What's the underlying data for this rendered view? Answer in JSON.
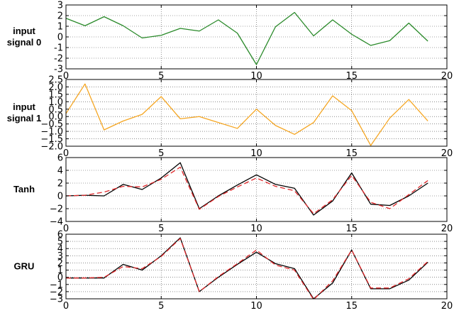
{
  "chart_data": [
    {
      "type": "line",
      "title": "",
      "row_label": [
        "input",
        "signal 0"
      ],
      "xlabel": "",
      "ylabel": "",
      "xlim": [
        0,
        20
      ],
      "ylim": [
        -3,
        3
      ],
      "xticks": [
        0,
        5,
        10,
        15,
        20
      ],
      "yticks": [
        -3,
        -2,
        -1,
        0,
        1,
        2,
        3
      ],
      "grid": true,
      "x": [
        0,
        1,
        2,
        3,
        4,
        5,
        6,
        7,
        8,
        9,
        10,
        11,
        12,
        13,
        14,
        15,
        16,
        17,
        18,
        19
      ],
      "series": [
        {
          "color": "#2a8a2a",
          "dash": "solid",
          "values": [
            1.75,
            1.05,
            1.9,
            1.05,
            -0.1,
            0.15,
            0.8,
            0.55,
            1.6,
            0.35,
            -2.6,
            0.95,
            2.3,
            0.1,
            1.6,
            0.25,
            -0.8,
            -0.35,
            1.3,
            -0.4
          ]
        }
      ]
    },
    {
      "type": "line",
      "title": "",
      "row_label": [
        "input",
        "signal 1"
      ],
      "xlabel": "",
      "ylabel": "",
      "xlim": [
        0,
        20
      ],
      "ylim": [
        -2.0,
        2.5
      ],
      "xticks": [
        0,
        5,
        10,
        15,
        20
      ],
      "yticks": [
        -2.0,
        -1.5,
        -1.0,
        -0.5,
        0.0,
        0.5,
        1.0,
        1.5,
        2.0,
        2.5
      ],
      "ytick_labels": [
        "−2.0",
        "−1.5",
        "−1.0",
        "−0.5",
        "0.0",
        "0.5",
        "1.0",
        "1.5",
        "2.0",
        "2.5"
      ],
      "grid": true,
      "x": [
        0,
        1,
        2,
        3,
        4,
        5,
        6,
        7,
        8,
        9,
        10,
        11,
        12,
        13,
        14,
        15,
        16,
        17,
        18,
        19
      ],
      "series": [
        {
          "color": "#f5a623",
          "dash": "solid",
          "values": [
            0.2,
            2.2,
            -0.9,
            -0.3,
            0.15,
            1.35,
            -0.15,
            0.0,
            -0.4,
            -0.8,
            0.5,
            -0.6,
            -1.2,
            -0.4,
            1.4,
            0.4,
            -1.95,
            -0.1,
            1.15,
            -0.3
          ]
        }
      ]
    },
    {
      "type": "line",
      "title": "",
      "row_label": [
        "Tanh"
      ],
      "xlabel": "",
      "ylabel": "",
      "xlim": [
        0,
        20
      ],
      "ylim": [
        -4,
        6
      ],
      "xticks": [
        0,
        5,
        10,
        15,
        20
      ],
      "yticks": [
        -4,
        -2,
        0,
        2,
        4,
        6
      ],
      "ytick_labels": [
        "−4",
        "−2",
        "0",
        "2",
        "4",
        "6"
      ],
      "grid": true,
      "x": [
        0,
        1,
        2,
        3,
        4,
        5,
        6,
        7,
        8,
        9,
        10,
        11,
        12,
        13,
        14,
        15,
        16,
        17,
        18,
        19
      ],
      "series": [
        {
          "color": "#000000",
          "dash": "solid",
          "values": [
            0.0,
            0.1,
            0.0,
            1.8,
            1.0,
            2.8,
            5.2,
            -2.0,
            0.0,
            1.7,
            3.3,
            1.8,
            1.2,
            -3.0,
            -0.8,
            3.6,
            -1.3,
            -1.5,
            0.0,
            2.0
          ]
        },
        {
          "color": "#e0282a",
          "dash": "dashed",
          "values": [
            0.0,
            0.1,
            0.6,
            1.5,
            1.4,
            2.6,
            4.5,
            -2.1,
            -0.1,
            1.4,
            2.8,
            1.5,
            0.8,
            -2.8,
            -0.6,
            3.2,
            -1.0,
            -2.0,
            0.2,
            2.4
          ]
        }
      ]
    },
    {
      "type": "line",
      "title": "",
      "row_label": [
        "GRU"
      ],
      "xlabel": "",
      "ylabel": "",
      "xlim": [
        0,
        20
      ],
      "ylim": [
        -3,
        6
      ],
      "xticks": [
        0,
        5,
        10,
        15,
        20
      ],
      "yticks": [
        -3,
        -2,
        -1,
        0,
        1,
        2,
        3,
        4,
        5,
        6
      ],
      "ytick_labels": [
        "−3",
        "−2",
        "−1",
        "0",
        "1",
        "2",
        "3",
        "4",
        "5",
        "6"
      ],
      "grid": true,
      "x": [
        0,
        1,
        2,
        3,
        4,
        5,
        6,
        7,
        8,
        9,
        10,
        11,
        12,
        13,
        14,
        15,
        16,
        17,
        18,
        19
      ],
      "series": [
        {
          "color": "#000000",
          "dash": "solid",
          "values": [
            -0.1,
            -0.1,
            -0.1,
            1.8,
            1.0,
            3.0,
            5.5,
            -2.0,
            0.0,
            1.8,
            3.5,
            1.9,
            1.2,
            -3.0,
            -0.8,
            3.8,
            -1.6,
            -1.6,
            -0.4,
            2.1
          ]
        },
        {
          "color": "#e0282a",
          "dash": "dashed",
          "values": [
            -0.1,
            -0.1,
            0.0,
            1.5,
            1.2,
            2.9,
            5.4,
            -2.0,
            0.1,
            1.9,
            3.8,
            1.7,
            1.0,
            -3.1,
            -0.5,
            3.8,
            -1.5,
            -1.5,
            -0.2,
            2.2
          ]
        }
      ]
    }
  ]
}
